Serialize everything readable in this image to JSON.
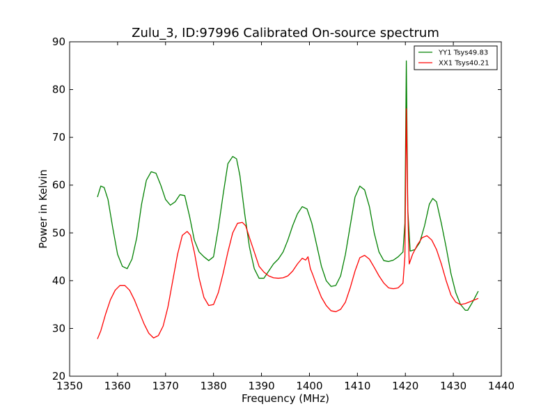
{
  "chart_data": {
    "type": "line",
    "title": "Zulu_3, ID:97996 Calibrated On-source spectrum",
    "xlabel": "Frequency (MHz)",
    "ylabel": "Power in Kelvin",
    "xlim": [
      1350,
      1440
    ],
    "ylim": [
      20,
      90
    ],
    "xticks": [
      1350,
      1360,
      1370,
      1380,
      1390,
      1400,
      1410,
      1420,
      1430,
      1440
    ],
    "yticks": [
      20,
      30,
      40,
      50,
      60,
      70,
      80,
      90
    ],
    "grid": false,
    "legend_position": "top-right",
    "series": [
      {
        "name": "YY1 Tsys49.83",
        "color": "#008000",
        "x": [
          1355.8,
          1356.5,
          1357.2,
          1358.0,
          1359.0,
          1360.0,
          1361.0,
          1362.0,
          1363.0,
          1364.0,
          1365.0,
          1366.0,
          1367.0,
          1368.0,
          1369.0,
          1370.0,
          1371.0,
          1372.0,
          1373.0,
          1374.0,
          1375.0,
          1376.0,
          1377.0,
          1378.0,
          1379.0,
          1380.0,
          1381.0,
          1382.0,
          1383.0,
          1384.0,
          1384.8,
          1385.5,
          1386.5,
          1387.5,
          1388.5,
          1389.5,
          1390.5,
          1391.5,
          1392.5,
          1393.5,
          1394.5,
          1395.5,
          1396.5,
          1397.5,
          1398.5,
          1399.5,
          1400.5,
          1401.5,
          1402.5,
          1403.5,
          1404.5,
          1405.5,
          1406.5,
          1407.5,
          1408.5,
          1409.5,
          1410.5,
          1411.5,
          1412.5,
          1413.5,
          1414.5,
          1415.5,
          1416.5,
          1417.5,
          1418.5,
          1419.5,
          1419.9,
          1420.2,
          1420.5,
          1421.0,
          1422.0,
          1423.0,
          1424.0,
          1425.0,
          1425.7,
          1426.5,
          1427.5,
          1428.5,
          1429.5,
          1430.5,
          1431.5,
          1432.5,
          1433.0,
          1434.0,
          1435.2
        ],
        "y": [
          57.5,
          59.8,
          59.5,
          57.0,
          51.0,
          45.5,
          43.0,
          42.5,
          44.5,
          49.0,
          56.0,
          61.0,
          62.8,
          62.5,
          60.0,
          57.0,
          55.8,
          56.5,
          58.0,
          57.8,
          53.5,
          48.5,
          46.0,
          45.0,
          44.2,
          45.0,
          51.0,
          58.0,
          64.5,
          66.0,
          65.5,
          62.0,
          54.0,
          47.0,
          42.5,
          40.5,
          40.5,
          42.0,
          43.5,
          44.5,
          46.0,
          48.5,
          51.5,
          54.0,
          55.5,
          55.0,
          52.0,
          47.5,
          43.0,
          40.0,
          38.8,
          39.0,
          41.0,
          45.5,
          51.5,
          57.5,
          59.8,
          59.0,
          55.5,
          50.0,
          46.0,
          44.2,
          44.0,
          44.3,
          45.0,
          46.0,
          52.0,
          86.0,
          55.0,
          46.2,
          46.5,
          48.0,
          51.5,
          56.0,
          57.2,
          56.5,
          52.0,
          47.0,
          41.5,
          37.5,
          35.0,
          33.8,
          33.8,
          35.5,
          37.8
        ]
      },
      {
        "name": "XX1 Tsys40.21",
        "color": "#ff0000",
        "x": [
          1355.8,
          1356.5,
          1357.5,
          1358.5,
          1359.5,
          1360.5,
          1361.5,
          1362.5,
          1363.5,
          1364.5,
          1365.5,
          1366.5,
          1367.5,
          1368.5,
          1369.5,
          1370.5,
          1371.5,
          1372.5,
          1373.5,
          1374.5,
          1375.2,
          1376.0,
          1377.0,
          1378.0,
          1379.0,
          1380.0,
          1381.0,
          1382.0,
          1383.0,
          1384.0,
          1385.0,
          1386.0,
          1386.7,
          1387.5,
          1388.5,
          1389.5,
          1390.5,
          1391.5,
          1392.5,
          1393.5,
          1394.5,
          1395.5,
          1396.5,
          1397.5,
          1398.5,
          1399.2,
          1399.7,
          1400.2,
          1400.6,
          1401.5,
          1402.5,
          1403.5,
          1404.5,
          1405.5,
          1406.5,
          1407.5,
          1408.5,
          1409.5,
          1410.5,
          1411.5,
          1412.5,
          1413.5,
          1414.5,
          1415.5,
          1416.5,
          1417.5,
          1418.5,
          1419.5,
          1419.9,
          1420.2,
          1420.5,
          1420.8,
          1421.5,
          1422.5,
          1423.5,
          1424.5,
          1425.5,
          1426.5,
          1427.5,
          1428.5,
          1429.5,
          1430.5,
          1431.5,
          1432.5,
          1433.5,
          1434.5,
          1435.2
        ],
        "y": [
          27.8,
          29.5,
          33.0,
          36.0,
          38.0,
          39.0,
          39.0,
          38.0,
          36.0,
          33.5,
          31.0,
          29.0,
          28.0,
          28.5,
          30.5,
          34.5,
          40.0,
          45.5,
          49.5,
          50.3,
          49.5,
          46.0,
          40.5,
          36.5,
          34.8,
          35.0,
          37.5,
          41.5,
          46.0,
          50.0,
          52.0,
          52.2,
          51.5,
          49.0,
          46.0,
          43.0,
          41.8,
          41.0,
          40.6,
          40.5,
          40.6,
          41.0,
          42.0,
          43.5,
          44.7,
          44.3,
          45.0,
          42.5,
          41.5,
          39.0,
          36.5,
          34.8,
          33.7,
          33.5,
          34.0,
          35.5,
          38.5,
          42.0,
          44.8,
          45.3,
          44.5,
          42.8,
          41.0,
          39.5,
          38.5,
          38.3,
          38.5,
          39.5,
          45.0,
          76.0,
          55.0,
          43.5,
          45.5,
          47.5,
          49.0,
          49.4,
          48.5,
          46.5,
          43.5,
          40.0,
          37.0,
          35.5,
          35.0,
          35.2,
          35.6,
          36.0,
          36.3
        ]
      }
    ]
  }
}
